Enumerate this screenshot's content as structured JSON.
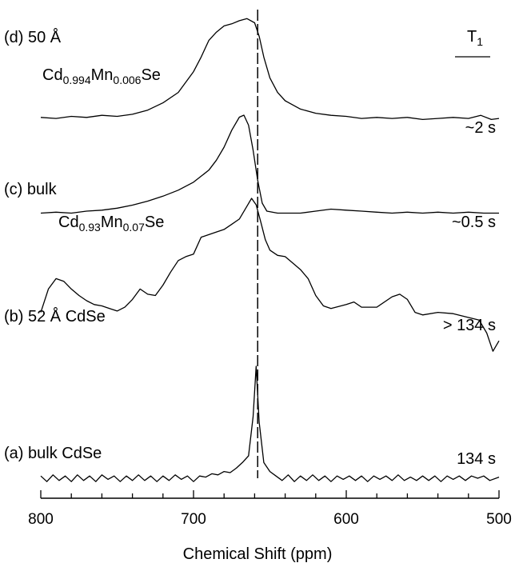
{
  "chart_data": {
    "type": "line",
    "xlabel": "Chemical Shift (ppm)",
    "xlim": [
      800,
      500
    ],
    "x_reversed": true,
    "x_ticks": [
      "800",
      "700",
      "600",
      "500"
    ],
    "t1_header": "T",
    "t1_header_sub": "1",
    "reference_shift": 658,
    "series": [
      {
        "id": "d",
        "label_prefix": "(d)",
        "line1": "50 Å",
        "formula": [
          [
            "Cd",
            ""
          ],
          [
            "0.994",
            "sub"
          ],
          [
            "Mn",
            ""
          ],
          [
            "0.006",
            "sub"
          ],
          [
            "Se",
            ""
          ]
        ],
        "t1": "~2 s",
        "points": [
          [
            800,
            0.04
          ],
          [
            790,
            0.03
          ],
          [
            780,
            0.05
          ],
          [
            770,
            0.04
          ],
          [
            760,
            0.06
          ],
          [
            750,
            0.05
          ],
          [
            740,
            0.07
          ],
          [
            730,
            0.11
          ],
          [
            720,
            0.18
          ],
          [
            710,
            0.28
          ],
          [
            700,
            0.48
          ],
          [
            695,
            0.62
          ],
          [
            690,
            0.78
          ],
          [
            685,
            0.86
          ],
          [
            680,
            0.92
          ],
          [
            675,
            0.94
          ],
          [
            670,
            0.97
          ],
          [
            665,
            0.99
          ],
          [
            660,
            0.95
          ],
          [
            657,
            0.82
          ],
          [
            654,
            0.62
          ],
          [
            650,
            0.42
          ],
          [
            645,
            0.28
          ],
          [
            640,
            0.2
          ],
          [
            630,
            0.12
          ],
          [
            620,
            0.08
          ],
          [
            610,
            0.06
          ],
          [
            600,
            0.05
          ],
          [
            590,
            0.03
          ],
          [
            580,
            0.04
          ],
          [
            570,
            0.03
          ],
          [
            560,
            0.04
          ],
          [
            550,
            0.02
          ],
          [
            540,
            0.03
          ],
          [
            530,
            0.04
          ],
          [
            520,
            0.03
          ],
          [
            512,
            0.06
          ],
          [
            505,
            0.02
          ],
          [
            500,
            0.03
          ]
        ]
      },
      {
        "id": "c",
        "label_prefix": "(c)",
        "line1": "bulk",
        "formula": [
          [
            "Cd",
            ""
          ],
          [
            "0.93",
            "sub"
          ],
          [
            "Mn",
            ""
          ],
          [
            "0.07",
            "sub"
          ],
          [
            "Se",
            ""
          ]
        ],
        "t1": "~0.5 s",
        "points": [
          [
            800,
            0.02
          ],
          [
            790,
            0.03
          ],
          [
            780,
            0.02
          ],
          [
            770,
            0.04
          ],
          [
            760,
            0.05
          ],
          [
            750,
            0.07
          ],
          [
            740,
            0.1
          ],
          [
            730,
            0.14
          ],
          [
            720,
            0.19
          ],
          [
            710,
            0.25
          ],
          [
            700,
            0.33
          ],
          [
            690,
            0.45
          ],
          [
            685,
            0.55
          ],
          [
            680,
            0.68
          ],
          [
            675,
            0.85
          ],
          [
            670,
            0.98
          ],
          [
            667,
            1.0
          ],
          [
            664,
            0.9
          ],
          [
            661,
            0.65
          ],
          [
            658,
            0.35
          ],
          [
            655,
            0.12
          ],
          [
            652,
            0.04
          ],
          [
            645,
            0.02
          ],
          [
            630,
            0.02
          ],
          [
            620,
            0.04
          ],
          [
            610,
            0.06
          ],
          [
            600,
            0.05
          ],
          [
            590,
            0.04
          ],
          [
            580,
            0.03
          ],
          [
            570,
            0.02
          ],
          [
            560,
            0.03
          ],
          [
            550,
            0.02
          ],
          [
            540,
            0.03
          ],
          [
            530,
            0.02
          ],
          [
            520,
            0.03
          ],
          [
            510,
            0.02
          ],
          [
            500,
            0.02
          ]
        ]
      },
      {
        "id": "b",
        "label_prefix": "(b)",
        "line1": "52 Å CdSe",
        "formula": [],
        "t1": "> 134 s",
        "points": [
          [
            800,
            0.12
          ],
          [
            795,
            0.3
          ],
          [
            790,
            0.38
          ],
          [
            785,
            0.36
          ],
          [
            780,
            0.3
          ],
          [
            775,
            0.25
          ],
          [
            770,
            0.21
          ],
          [
            765,
            0.18
          ],
          [
            760,
            0.17
          ],
          [
            755,
            0.15
          ],
          [
            750,
            0.13
          ],
          [
            745,
            0.16
          ],
          [
            740,
            0.22
          ],
          [
            735,
            0.3
          ],
          [
            730,
            0.26
          ],
          [
            725,
            0.25
          ],
          [
            720,
            0.33
          ],
          [
            715,
            0.43
          ],
          [
            710,
            0.52
          ],
          [
            705,
            0.55
          ],
          [
            700,
            0.57
          ],
          [
            695,
            0.7
          ],
          [
            690,
            0.72
          ],
          [
            685,
            0.74
          ],
          [
            680,
            0.76
          ],
          [
            675,
            0.8
          ],
          [
            670,
            0.84
          ],
          [
            665,
            0.94
          ],
          [
            662,
            1.0
          ],
          [
            659,
            0.95
          ],
          [
            656,
            0.82
          ],
          [
            653,
            0.68
          ],
          [
            650,
            0.6
          ],
          [
            645,
            0.56
          ],
          [
            640,
            0.55
          ],
          [
            635,
            0.5
          ],
          [
            630,
            0.45
          ],
          [
            625,
            0.38
          ],
          [
            620,
            0.25
          ],
          [
            615,
            0.17
          ],
          [
            610,
            0.15
          ],
          [
            600,
            0.18
          ],
          [
            595,
            0.2
          ],
          [
            590,
            0.16
          ],
          [
            580,
            0.16
          ],
          [
            570,
            0.24
          ],
          [
            565,
            0.26
          ],
          [
            560,
            0.22
          ],
          [
            555,
            0.12
          ],
          [
            550,
            0.1
          ],
          [
            540,
            0.12
          ],
          [
            530,
            0.11
          ],
          [
            520,
            0.08
          ],
          [
            513,
            0.06
          ],
          [
            508,
            -0.04
          ],
          [
            504,
            -0.18
          ],
          [
            500,
            -0.1
          ]
        ]
      },
      {
        "id": "a",
        "label_prefix": "(a)",
        "line1": "bulk CdSe",
        "formula": [],
        "t1": "134 s",
        "points": [
          [
            800,
            0.02
          ],
          [
            796,
            -0.03
          ],
          [
            792,
            0.03
          ],
          [
            788,
            -0.02
          ],
          [
            784,
            0.02
          ],
          [
            780,
            -0.03
          ],
          [
            776,
            0.03
          ],
          [
            772,
            -0.02
          ],
          [
            768,
            0.02
          ],
          [
            764,
            -0.03
          ],
          [
            760,
            0.03
          ],
          [
            756,
            -0.01
          ],
          [
            752,
            0.02
          ],
          [
            748,
            -0.03
          ],
          [
            744,
            0.02
          ],
          [
            740,
            -0.02
          ],
          [
            736,
            0.03
          ],
          [
            732,
            -0.02
          ],
          [
            728,
            0.02
          ],
          [
            724,
            -0.03
          ],
          [
            720,
            0.02
          ],
          [
            716,
            -0.02
          ],
          [
            712,
            0.03
          ],
          [
            708,
            -0.01
          ],
          [
            704,
            0.02
          ],
          [
            700,
            -0.03
          ],
          [
            696,
            0.02
          ],
          [
            692,
            0.01
          ],
          [
            688,
            0.04
          ],
          [
            684,
            0.03
          ],
          [
            680,
            0.06
          ],
          [
            676,
            0.05
          ],
          [
            672,
            0.09
          ],
          [
            668,
            0.14
          ],
          [
            664,
            0.2
          ],
          [
            661,
            0.55
          ],
          [
            659,
            1.0
          ],
          [
            657,
            0.5
          ],
          [
            654,
            0.14
          ],
          [
            650,
            0.06
          ],
          [
            646,
            0.02
          ],
          [
            642,
            -0.02
          ],
          [
            638,
            0.03
          ],
          [
            634,
            -0.03
          ],
          [
            630,
            0.02
          ],
          [
            626,
            -0.02
          ],
          [
            622,
            0.03
          ],
          [
            618,
            -0.02
          ],
          [
            614,
            0.02
          ],
          [
            610,
            -0.03
          ],
          [
            606,
            0.02
          ],
          [
            602,
            -0.01
          ],
          [
            598,
            0.02
          ],
          [
            594,
            -0.02
          ],
          [
            590,
            0.02
          ],
          [
            586,
            -0.03
          ],
          [
            582,
            0.02
          ],
          [
            578,
            -0.01
          ],
          [
            574,
            0.02
          ],
          [
            570,
            -0.02
          ],
          [
            566,
            0.03
          ],
          [
            562,
            -0.02
          ],
          [
            558,
            0.01
          ],
          [
            554,
            -0.02
          ],
          [
            550,
            0.02
          ],
          [
            546,
            -0.02
          ],
          [
            542,
            0.02
          ],
          [
            538,
            -0.03
          ],
          [
            534,
            0.02
          ],
          [
            530,
            -0.01
          ],
          [
            526,
            0.02
          ],
          [
            522,
            -0.02
          ],
          [
            518,
            0.02
          ],
          [
            514,
            0.0
          ],
          [
            510,
            0.02
          ],
          [
            506,
            -0.02
          ],
          [
            500,
            0.01
          ]
        ]
      }
    ]
  }
}
